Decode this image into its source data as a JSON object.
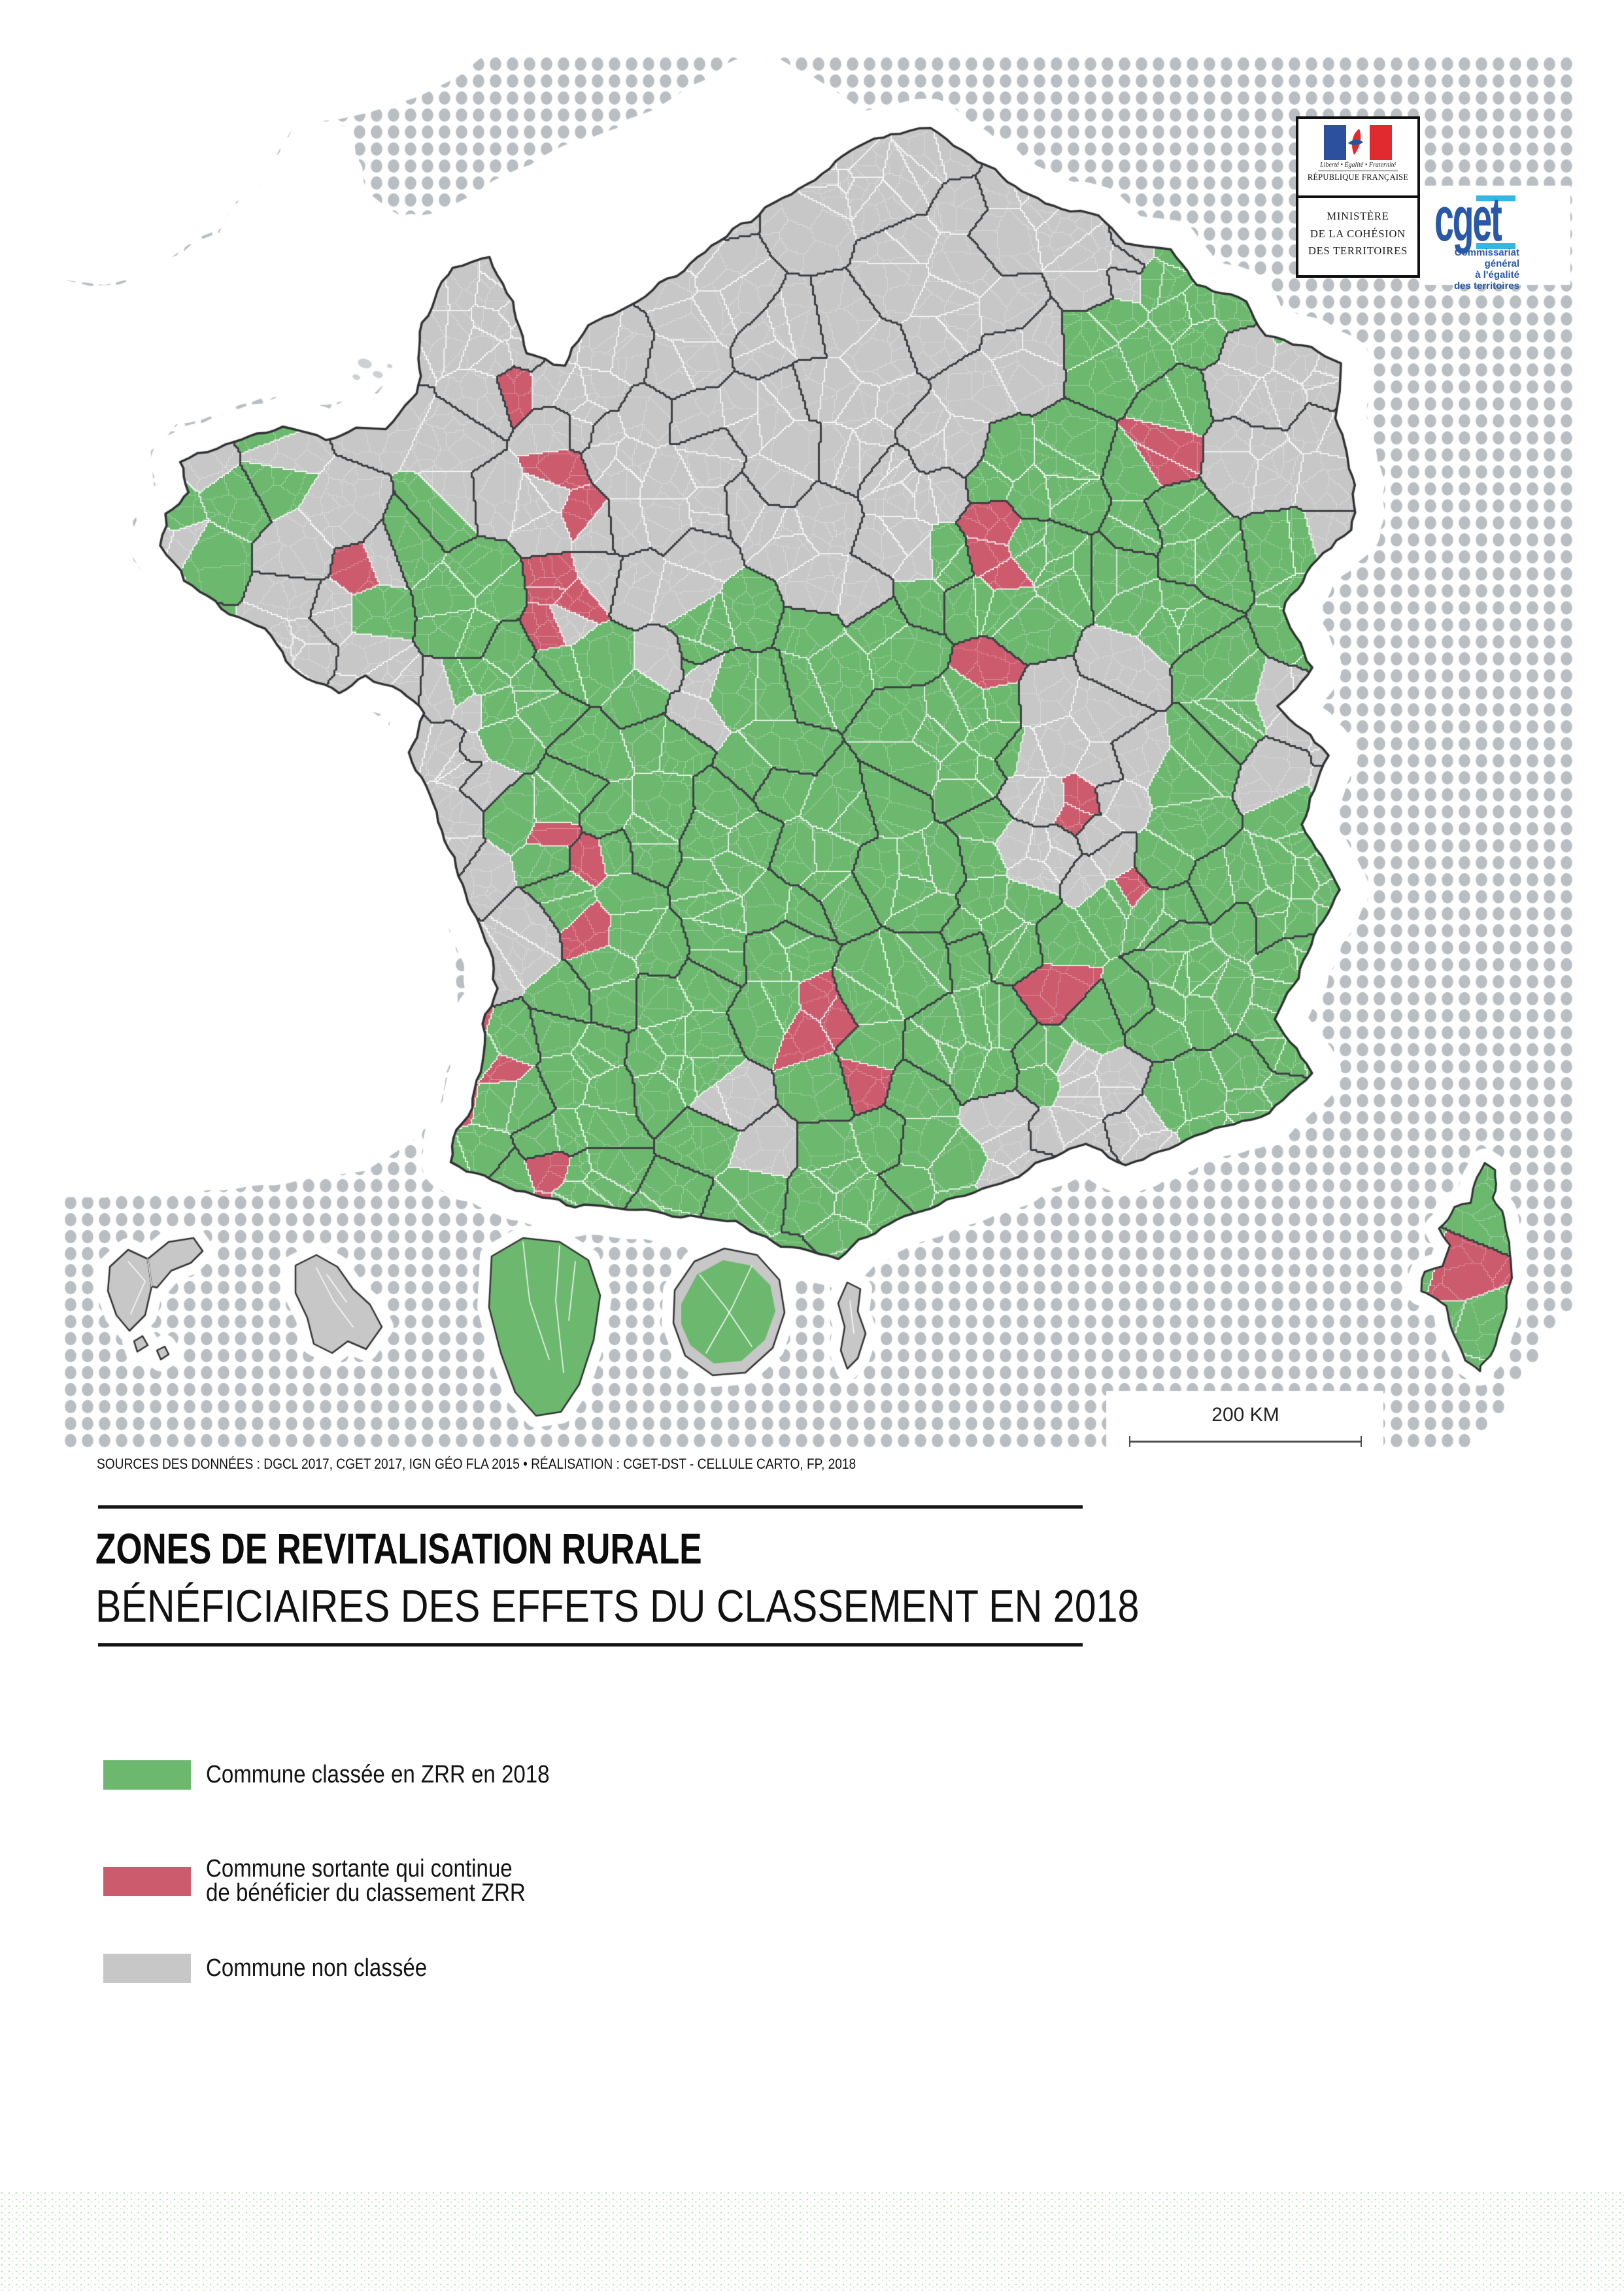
{
  "header": {
    "marianne": {
      "motto": "Liberté • Égalité • Fraternité",
      "republic": "RÉPUBLIQUE FRANÇAISE",
      "ministry_lines": [
        "MINISTÈRE",
        "DE LA COHÉSION",
        "DES TERRITOIRES"
      ]
    },
    "cget": {
      "wordmark": "cget",
      "descriptor_lines": [
        "Commissariat",
        "général",
        "à l'égalité",
        "des territoires"
      ],
      "blue": "#2a58a8",
      "cyan": "#35b6e5"
    }
  },
  "map": {
    "scale_bar": {
      "label": "200 KM"
    },
    "sources": "SOURCES DES DONNÉES : DGCL 2017, CGET 2017, IGN GÉO FLA 2015 • RÉALISATION : CGET-DST - CELLULE CARTO, FP, 2018",
    "colors": {
      "zrr_green": "#6cb86f",
      "sortante_red": "#cb5b6d",
      "non_classee_gray": "#c7c7c7",
      "halftone_dot": "#b8bec1",
      "commune_border": "#ffffff",
      "department_border": "#3e4144",
      "coastline": "#2f3133",
      "sea": "#ffffff",
      "flag_blue": "#2c4f9e",
      "flag_red": "#e02a30"
    }
  },
  "title_block": {
    "title": "ZONES DE REVITALISATION RURALE",
    "subtitle": "BÉNÉFICIAIRES DES EFFETS DU CLASSEMENT EN 2018"
  },
  "legend": {
    "items": [
      {
        "id": "classee-2018",
        "color": "#6cb86f",
        "lines": [
          "Commune classée en ZRR en 2018"
        ]
      },
      {
        "id": "sortante",
        "color": "#cb5b6d",
        "lines": [
          "Commune sortante qui continue",
          "de bénéficier du classement ZRR"
        ]
      },
      {
        "id": "non-classee",
        "color": "#c7c7c7",
        "lines": [
          "Commune non classée"
        ]
      }
    ]
  }
}
